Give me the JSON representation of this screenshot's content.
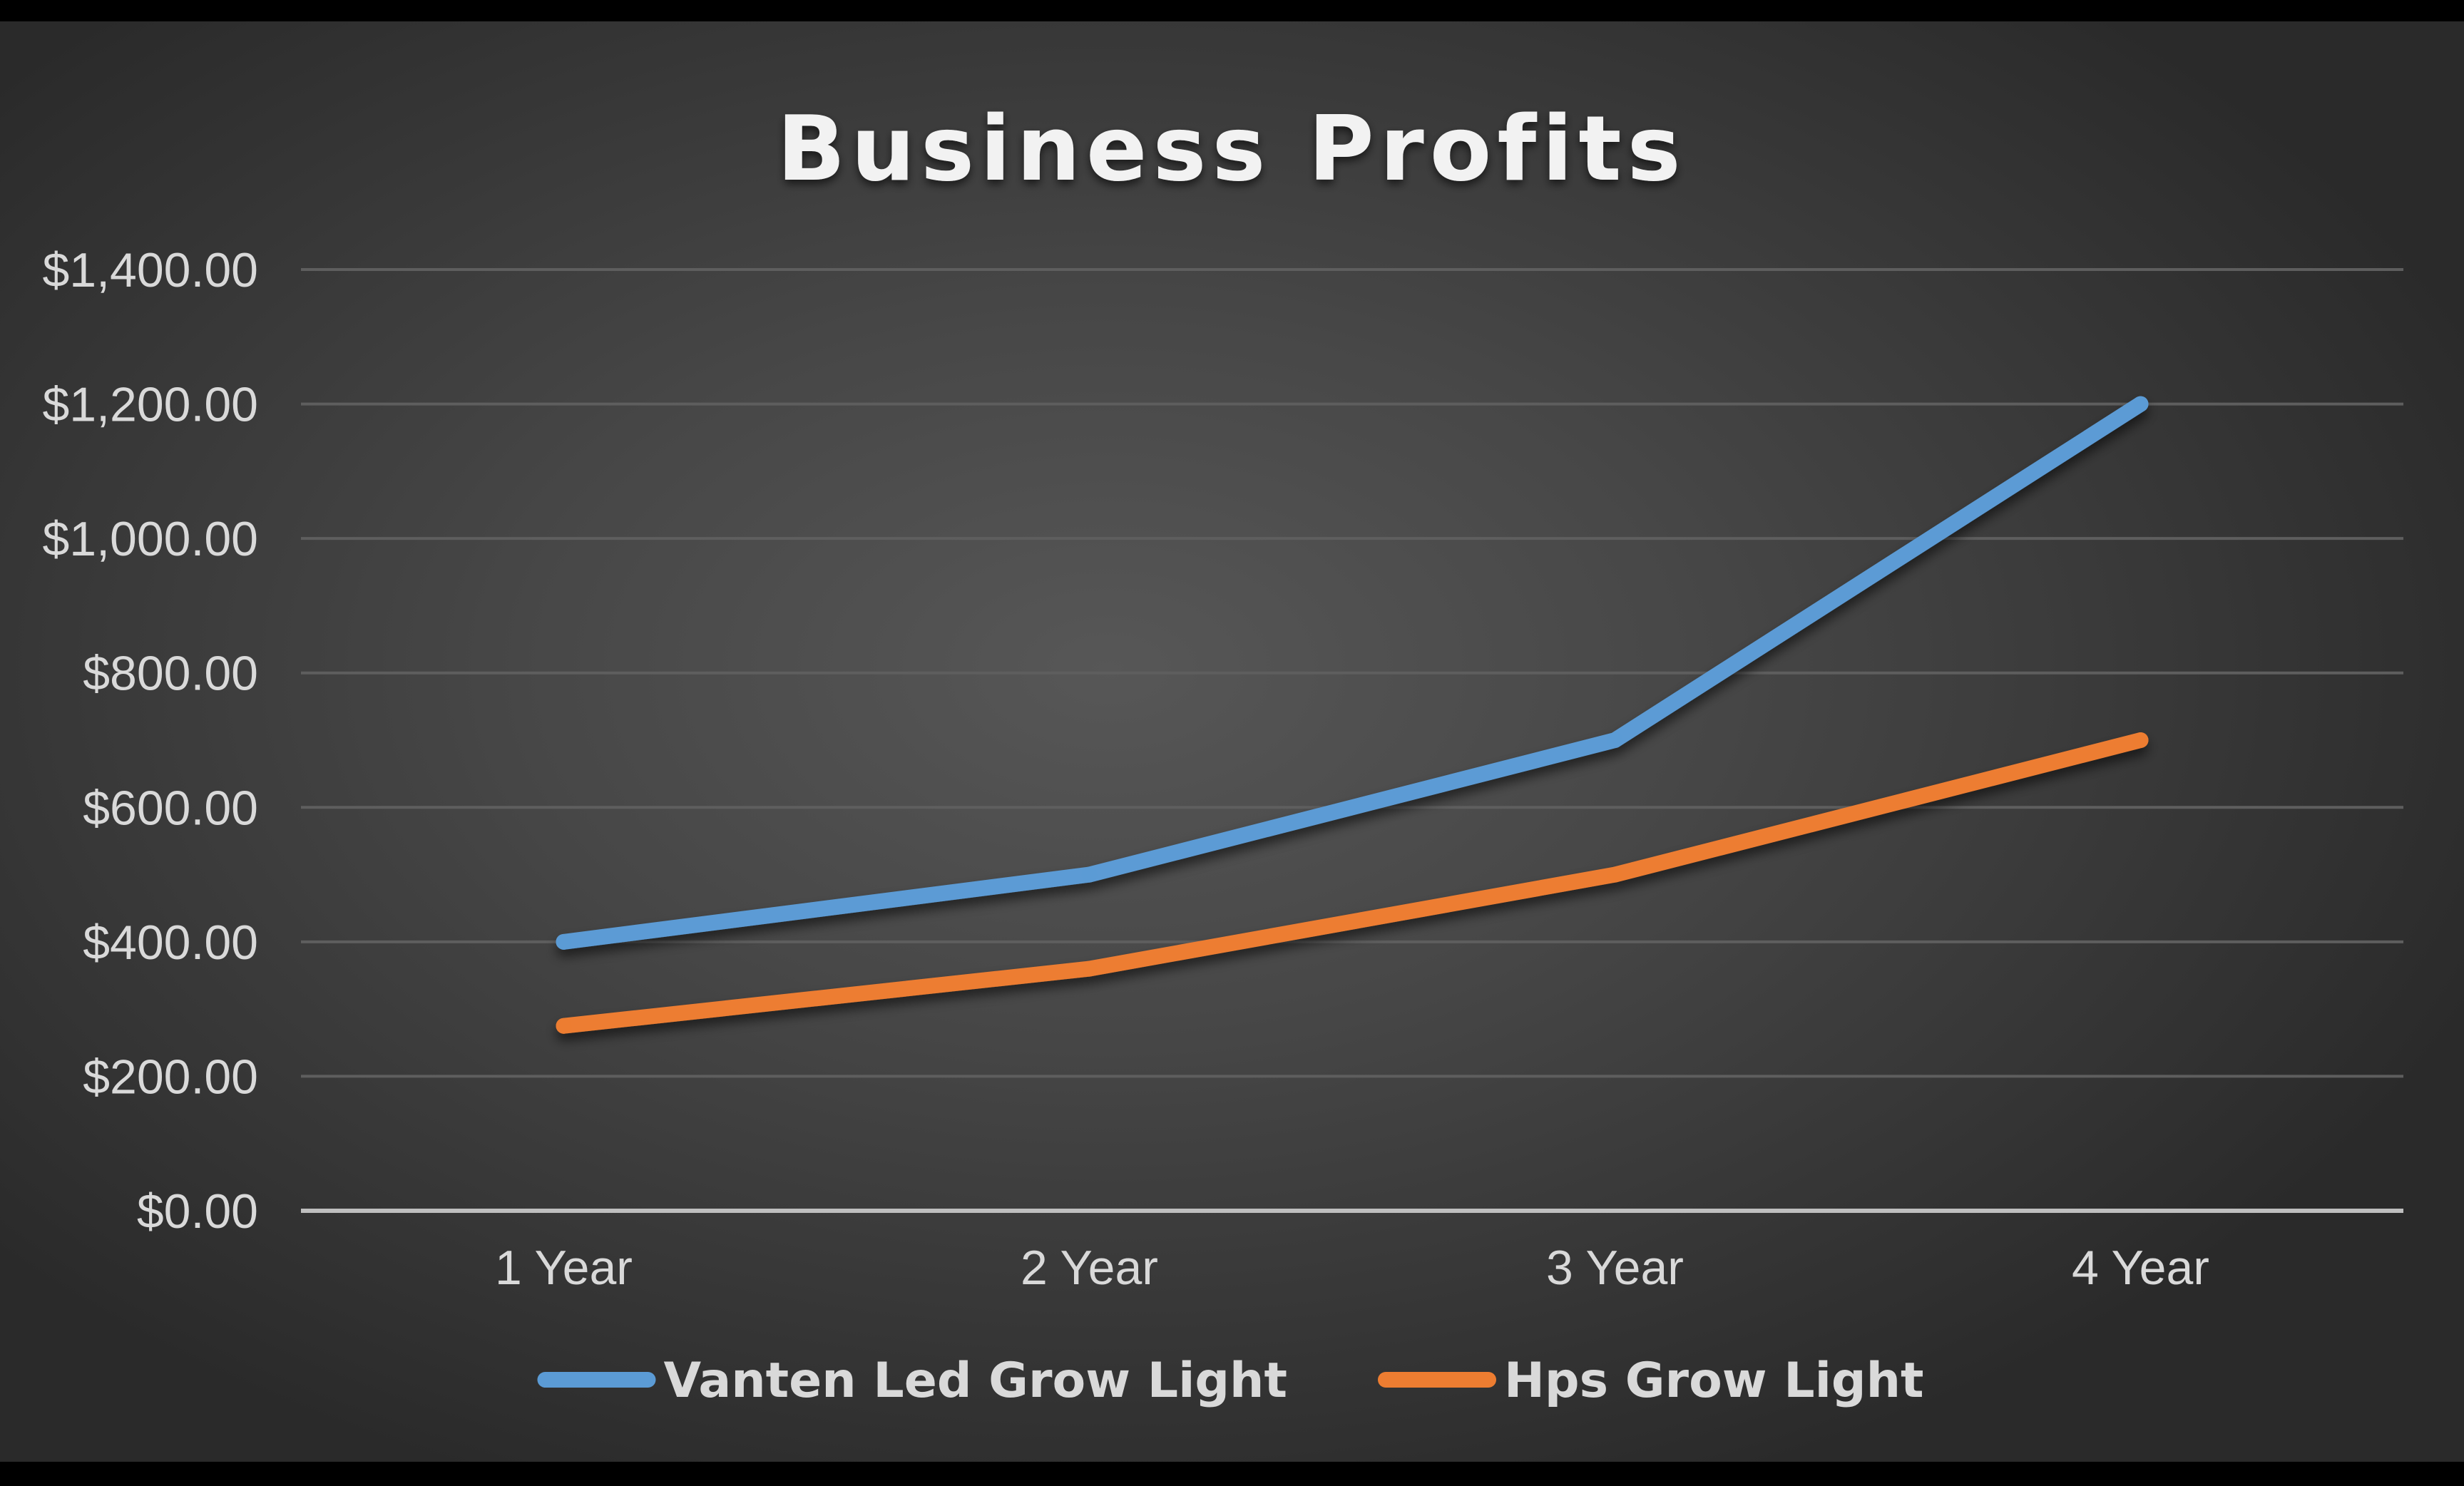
{
  "chart_data": {
    "type": "line",
    "title": "Business Profits",
    "xlabel": "",
    "ylabel": "",
    "categories": [
      "1 Year",
      "2 Year",
      "3 Year",
      "4 Year"
    ],
    "ylim": [
      0,
      1400
    ],
    "yticks": [
      0,
      200,
      400,
      600,
      800,
      1000,
      1200,
      1400
    ],
    "ytick_labels": [
      "$0.00",
      "$200.00",
      "$400.00",
      "$600.00",
      "$800.00",
      "$1,000.00",
      "$1,200.00",
      "$1,400.00"
    ],
    "grid": true,
    "legend_position": "bottom",
    "series": [
      {
        "name": "Vanten Led Grow Light",
        "color": "#5b9bd5",
        "values": [
          400,
          500,
          700,
          1200
        ]
      },
      {
        "name": "Hps Grow Light",
        "color": "#ed7d31",
        "values": [
          275,
          360,
          500,
          700
        ]
      }
    ]
  }
}
